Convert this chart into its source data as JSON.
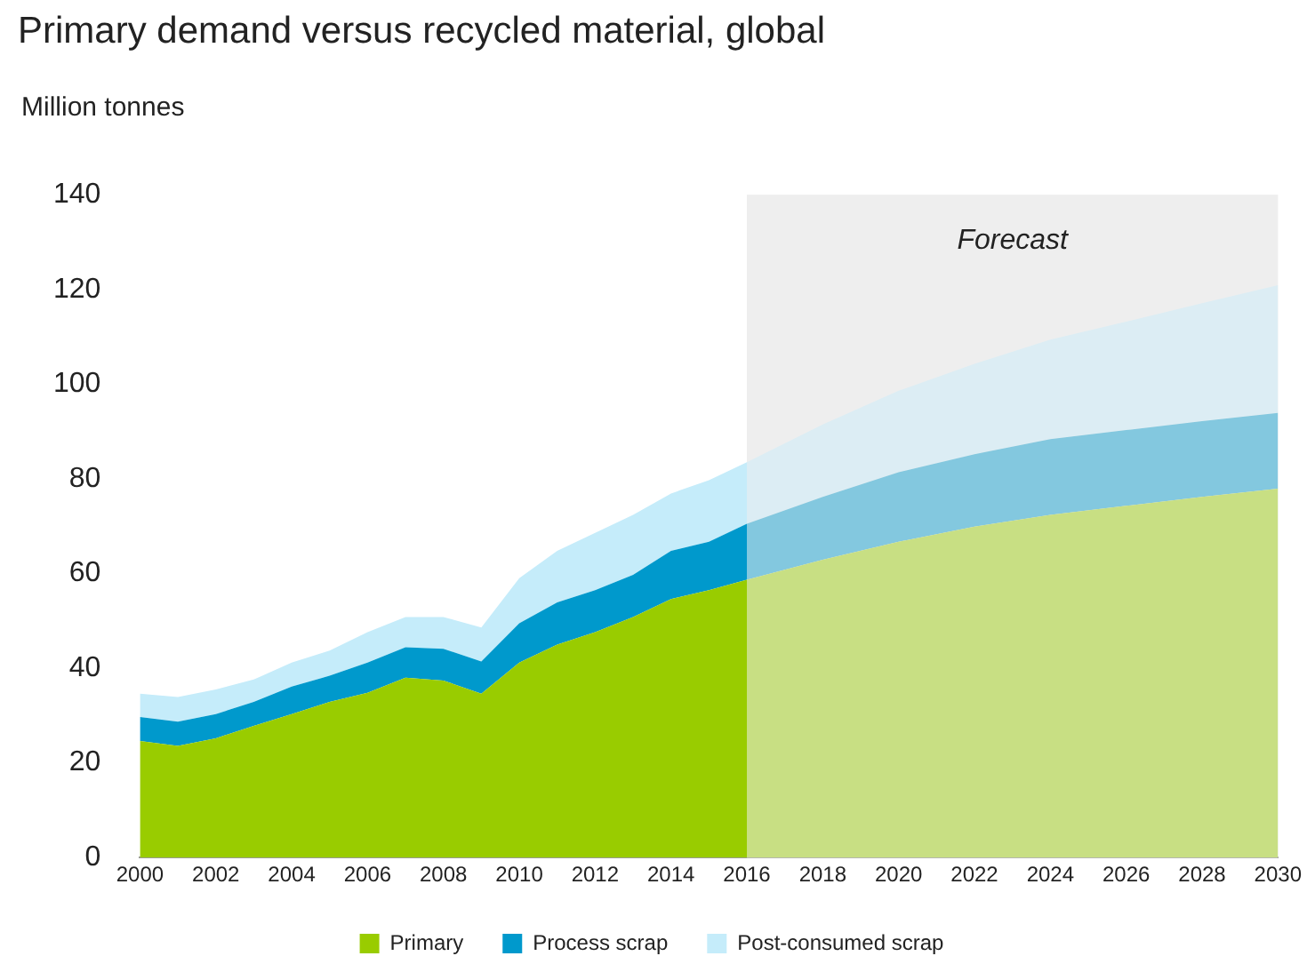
{
  "chart_data": {
    "type": "area",
    "title": "Primary demand versus recycled material, global",
    "ylabel": "Million tonnes",
    "stacked": true,
    "x": [
      2000,
      2001,
      2002,
      2003,
      2004,
      2005,
      2006,
      2007,
      2008,
      2009,
      2010,
      2011,
      2012,
      2013,
      2014,
      2015,
      2016,
      2018,
      2020,
      2022,
      2024,
      2026,
      2028,
      2030
    ],
    "series": [
      {
        "name": "Primary",
        "color": "#99cc00",
        "values": [
          24.6,
          23.6,
          25.2,
          27.8,
          30.3,
          32.9,
          34.8,
          38.0,
          37.4,
          34.6,
          41.2,
          45.0,
          47.6,
          50.8,
          54.6,
          56.5,
          58.7,
          62.9,
          66.7,
          69.9,
          72.4,
          74.3,
          76.2,
          77.9
        ]
      },
      {
        "name": "Process scrap",
        "color": "#0099cc",
        "values": [
          5.1,
          5.1,
          5.1,
          5.1,
          5.8,
          5.5,
          6.4,
          6.4,
          6.7,
          6.8,
          8.3,
          8.9,
          8.9,
          8.9,
          10.2,
          10.2,
          11.8,
          13.3,
          14.7,
          15.3,
          16.0,
          16.0,
          16.0,
          16.0
        ]
      },
      {
        "name": "Post-consumed scrap",
        "color": "#c5ecfa",
        "values": [
          4.9,
          5.2,
          5.2,
          4.7,
          5.1,
          5.3,
          6.4,
          6.4,
          6.7,
          7.2,
          9.5,
          10.9,
          12.1,
          12.7,
          12.1,
          13.0,
          13.0,
          15.3,
          17.2,
          19.1,
          21.0,
          22.9,
          24.9,
          27.0
        ]
      }
    ],
    "xlim": [
      2000,
      2030
    ],
    "xticks": [
      2000,
      2002,
      2004,
      2006,
      2008,
      2010,
      2012,
      2014,
      2016,
      2018,
      2020,
      2022,
      2024,
      2026,
      2028,
      2030
    ],
    "ylim": [
      0,
      140
    ],
    "yticks": [
      0,
      20,
      40,
      60,
      80,
      100,
      120,
      140
    ],
    "bands": [
      {
        "axis": "x",
        "from": 2016,
        "to": 2030,
        "label": "Forecast",
        "color": "#eeeeee"
      }
    ],
    "grid": false,
    "legend": "bottom"
  }
}
